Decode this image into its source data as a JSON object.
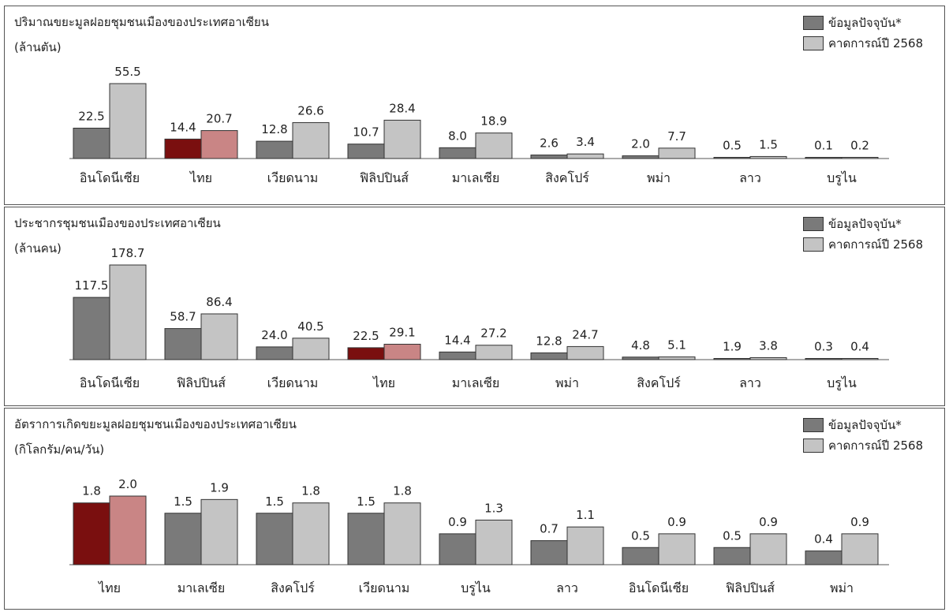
{
  "colors": {
    "current": "#7a7a7a",
    "forecast": "#c4c4c4",
    "thailand_current": "#7a0f0f",
    "thailand_forecast": "#c98585",
    "border": "#333333"
  },
  "legend": {
    "current": "ข้อมูลปัจจุบัน*",
    "forecast": "คาดการณ์ปี 2568"
  },
  "chart_data": [
    {
      "type": "bar",
      "title": "ปริมาณขยะมูลฝอยชุมชนเมืองของประเทศอาเซียน",
      "unit": "(ล้านตัน)",
      "highlight": "ไทย",
      "categories": [
        "อินโดนีเซีย",
        "ไทย",
        "เวียดนาม",
        "ฟิลิปปินส์",
        "มาเลเซีย",
        "สิงคโปร์",
        "พม่า",
        "ลาว",
        "บรูไน"
      ],
      "series": [
        {
          "name": "ข้อมูลปัจจุบัน*",
          "values": [
            22.5,
            14.4,
            12.8,
            10.7,
            8.0,
            2.6,
            2.0,
            0.5,
            0.1
          ]
        },
        {
          "name": "คาดการณ์ปี 2568",
          "values": [
            55.5,
            20.7,
            26.6,
            28.4,
            18.9,
            3.4,
            7.7,
            1.5,
            0.2
          ]
        }
      ],
      "value_labels": [
        [
          "22.5",
          "14.4",
          "12.8",
          "10.7",
          "8.0",
          "2.6",
          "2.0",
          "0.5",
          "0.1"
        ],
        [
          "55.5",
          "20.7",
          "26.6",
          "28.4",
          "18.9",
          "3.4",
          "7.7",
          "1.5",
          "0.2"
        ]
      ],
      "ylim": [
        0,
        55.5
      ],
      "grid": false,
      "legend_position": "top-right"
    },
    {
      "type": "bar",
      "title": "ประชากรชุมชนเมืองของประเทศอาเซียน",
      "unit": "(ล้านคน)",
      "highlight": "ไทย",
      "categories": [
        "อินโดนีเซีย",
        "ฟิลิปปินส์",
        "เวียดนาม",
        "ไทย",
        "มาเลเซีย",
        "พม่า",
        "สิงคโปร์",
        "ลาว",
        "บรูไน"
      ],
      "series": [
        {
          "name": "ข้อมูลปัจจุบัน*",
          "values": [
            117.5,
            58.7,
            24.0,
            22.5,
            14.4,
            12.8,
            4.8,
            1.9,
            0.3
          ]
        },
        {
          "name": "คาดการณ์ปี 2568",
          "values": [
            178.7,
            86.4,
            40.5,
            29.1,
            27.2,
            24.7,
            5.1,
            3.8,
            0.4
          ]
        }
      ],
      "value_labels": [
        [
          "117.5",
          "58.7",
          "24.0",
          "22.5",
          "14.4",
          "12.8",
          "4.8",
          "1.9",
          "0.3"
        ],
        [
          "178.7",
          "86.4",
          "40.5",
          "29.1",
          "27.2",
          "24.7",
          "5.1",
          "3.8",
          "0.4"
        ]
      ],
      "ylim": [
        0,
        178.7
      ],
      "grid": false,
      "legend_position": "top-right"
    },
    {
      "type": "bar",
      "title": "อัตราการเกิดขยะมูลฝอยชุมชนเมืองของประเทศอาเซียน",
      "unit": "(กิโลกรัม/คน/วัน)",
      "highlight": "ไทย",
      "categories": [
        "ไทย",
        "มาเลเซีย",
        "สิงคโปร์",
        "เวียดนาม",
        "บรูไน",
        "ลาว",
        "อินโดนีเซีย",
        "ฟิลิปปินส์",
        "พม่า"
      ],
      "series": [
        {
          "name": "ข้อมูลปัจจุบัน*",
          "values": [
            1.8,
            1.5,
            1.5,
            1.5,
            0.9,
            0.7,
            0.5,
            0.5,
            0.4
          ]
        },
        {
          "name": "คาดการณ์ปี 2568",
          "values": [
            2.0,
            1.9,
            1.8,
            1.8,
            1.3,
            1.1,
            0.9,
            0.9,
            0.9
          ]
        }
      ],
      "value_labels": [
        [
          "1.8",
          "1.5",
          "1.5",
          "1.5",
          "0.9",
          "0.7",
          "0.5",
          "0.5",
          "0.4"
        ],
        [
          "2.0",
          "1.9",
          "1.8",
          "1.8",
          "1.3",
          "1.1",
          "0.9",
          "0.9",
          "0.9"
        ]
      ],
      "ylim": [
        0,
        2.0
      ],
      "grid": false,
      "legend_position": "top-right"
    }
  ]
}
